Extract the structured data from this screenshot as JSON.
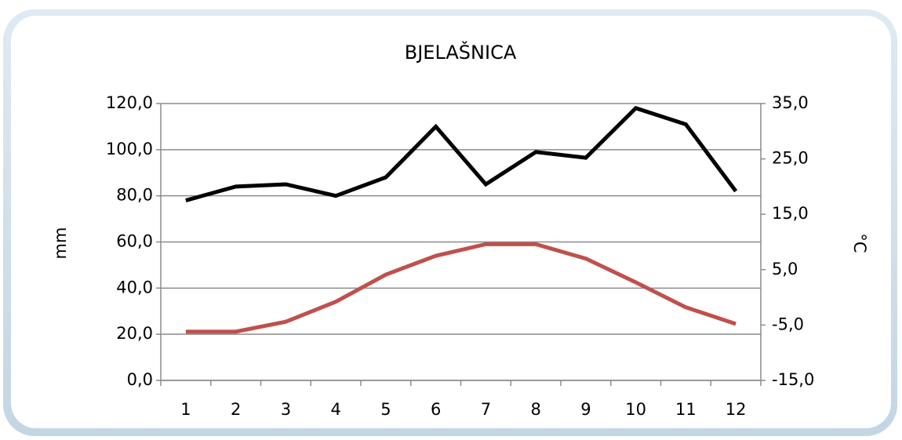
{
  "chart_data": {
    "type": "line",
    "title": "BJELAŠNICA",
    "y_label": "mm",
    "y2_label": "°C",
    "categories": [
      "1",
      "2",
      "3",
      "4",
      "5",
      "6",
      "7",
      "8",
      "9",
      "10",
      "11",
      "12"
    ],
    "series": [
      {
        "color": "#000000",
        "values": [
          78,
          84,
          85,
          80,
          88,
          110,
          85,
          99,
          96.5,
          118,
          111,
          82
        ]
      },
      {
        "color": "#c0504d",
        "axis": "y2",
        "values": [
          -6.2,
          -6.2,
          -4.4,
          -0.8,
          4.1,
          7.5,
          9.6,
          9.6,
          7.0,
          2.7,
          -1.8,
          -4.8
        ]
      }
    ],
    "ylim": [
      0,
      120
    ],
    "yticks": [
      {
        "value": 0,
        "label": "0,0"
      },
      {
        "value": 20,
        "label": "20,0"
      },
      {
        "value": 40,
        "label": "40,0"
      },
      {
        "value": 60,
        "label": "60,0"
      },
      {
        "value": 80,
        "label": "80,0"
      },
      {
        "value": 100,
        "label": "100,0"
      },
      {
        "value": 120,
        "label": "120,0"
      }
    ],
    "y2lim": [
      -15,
      35
    ],
    "y2ticks": [
      {
        "value": -15,
        "label": "-15,0"
      },
      {
        "value": -5,
        "label": "-5,0"
      },
      {
        "value": 5,
        "label": "5,0"
      },
      {
        "value": 15,
        "label": "15,0"
      },
      {
        "value": 25,
        "label": "25,0"
      },
      {
        "value": 35,
        "label": "35,0"
      }
    ],
    "grid": true
  }
}
